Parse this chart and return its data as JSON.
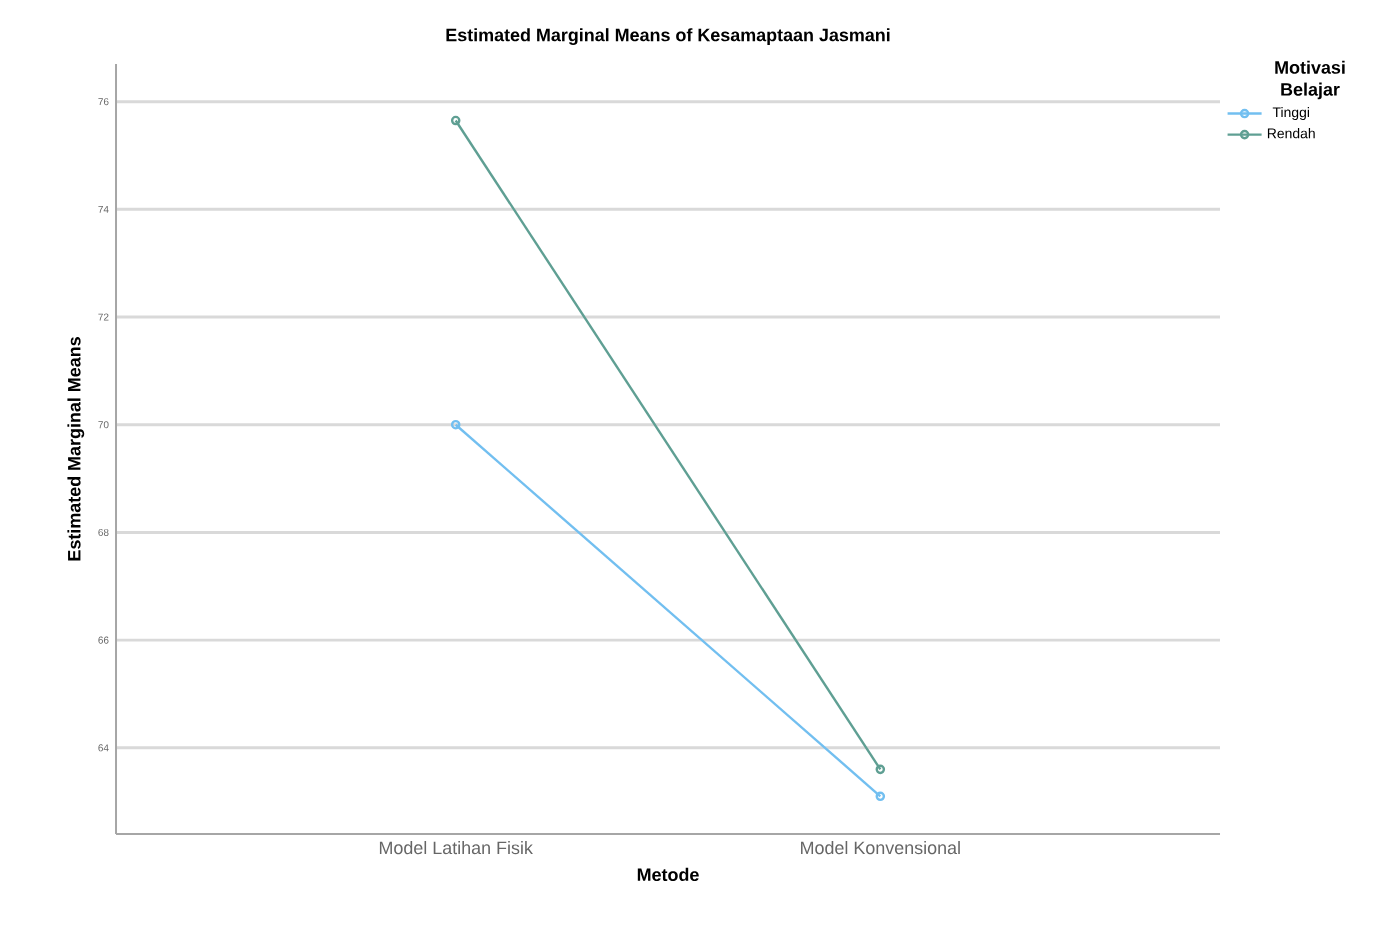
{
  "chart_data": {
    "type": "line",
    "title": "Estimated Marginal Means of Kesamaptaan Jasmani",
    "xlabel": "Metode",
    "ylabel": "Estimated Marginal Means",
    "legend_title": "Motivasi Belajar",
    "categories": [
      "Model Latihan Fisik",
      "Model Konvensional"
    ],
    "series": [
      {
        "name": "Tinggi",
        "color": "#72bff0",
        "values": [
          70.0,
          63.1
        ]
      },
      {
        "name": "Rendah",
        "color": "#5f9f93",
        "values": [
          75.65,
          63.6
        ]
      }
    ],
    "ylim": [
      62.4,
      76.7
    ],
    "yticks": [
      64,
      66,
      68,
      70,
      72,
      74,
      76
    ],
    "grid": "y",
    "legend": "top right",
    "marker": "circle"
  }
}
